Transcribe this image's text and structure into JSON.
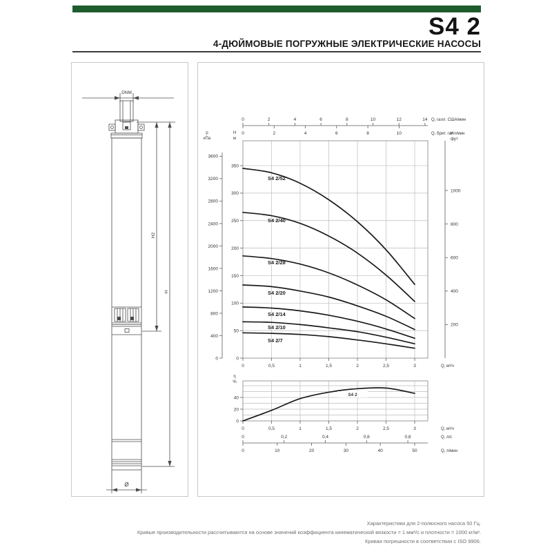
{
  "page": {
    "title": "S4 2",
    "subtitle": "4-ДЮЙМОВЫЕ ПОГРУЖНЫЕ ЭЛЕКТРИЧЕСКИЕ НАСОСЫ"
  },
  "drawing": {
    "labels": {
      "dnm": "DNM",
      "h2": "H2",
      "h": "H",
      "diameter": "Ø"
    }
  },
  "chart_data": [
    {
      "type": "line",
      "title": "",
      "xlabel": "Q, м³/ч",
      "ylabel": "H, м",
      "xlim": [
        0,
        3.23
      ],
      "ylim": [
        0,
        395
      ],
      "grid": true,
      "x": [
        0,
        0.5,
        1,
        1.5,
        2,
        2.5,
        3
      ],
      "series": [
        {
          "name": "S4 2/52",
          "values": [
            345,
            337,
            318,
            288,
            248,
            197,
            134
          ]
        },
        {
          "name": "S4 2/40",
          "values": [
            265,
            259,
            245,
            222,
            191,
            151,
            103
          ]
        },
        {
          "name": "S4 2/28",
          "values": [
            186,
            181,
            171,
            155,
            133,
            106,
            72
          ]
        },
        {
          "name": "S4 2/20",
          "values": [
            133,
            130,
            122,
            111,
            95,
            76,
            52
          ]
        },
        {
          "name": "S4 2/14",
          "values": [
            93,
            91,
            86,
            78,
            67,
            53,
            36
          ]
        },
        {
          "name": "S4 2/10",
          "values": [
            66,
            65,
            61,
            55,
            48,
            38,
            26
          ]
        },
        {
          "name": "S4 2/7",
          "values": [
            46,
            45,
            43,
            39,
            33,
            26,
            18
          ]
        }
      ],
      "axes": {
        "x_bottom_m3h": {
          "label": "Q, м³/ч",
          "values": [
            0,
            0.5,
            1,
            1.5,
            2,
            2.5,
            3
          ],
          "tick_labels": [
            "0",
            "0,5",
            "1",
            "1,5",
            "2",
            "2,5",
            "3"
          ]
        },
        "x_top_us_gpm": {
          "label": "Q, галл. США/мин",
          "values": [
            0,
            2,
            4,
            6,
            8,
            10,
            12,
            14
          ]
        },
        "x_top_imp_gpm": {
          "label": "Q, брит. галл/мин",
          "values": [
            0,
            2,
            4,
            6,
            8,
            10
          ]
        },
        "y_left_head_m": {
          "label": "H, м",
          "stack": [
            "H",
            "м"
          ],
          "values": [
            0,
            50,
            100,
            150,
            200,
            250,
            300,
            350
          ]
        },
        "y_left_kpa": {
          "label": "p, кПа",
          "stack": [
            "p",
            "кПа"
          ],
          "values": [
            0,
            400,
            800,
            1200,
            1600,
            2000,
            2400,
            2800,
            3200,
            3600
          ]
        },
        "y_right_ft": {
          "label": "H, фут",
          "stack": [
            "H",
            "фут"
          ],
          "values": [
            200,
            400,
            600,
            800,
            1000
          ]
        }
      }
    },
    {
      "type": "line",
      "title": "",
      "curve_label": "S4 2",
      "xlabel": "Q, м³/ч",
      "ylabel": "η, %",
      "xlim": [
        0,
        3.23
      ],
      "ylim": [
        0,
        68
      ],
      "grid": true,
      "x": [
        0,
        0.5,
        1,
        1.5,
        2,
        2.5,
        3
      ],
      "values": [
        0,
        18,
        38,
        49,
        55,
        56,
        47
      ],
      "axes": {
        "y_left_eff": {
          "label": "η, %",
          "stack": [
            "η",
            "%"
          ],
          "values": [
            0,
            20,
            40
          ]
        },
        "x_bottom_m3h": {
          "label": "Q, м³/ч",
          "values": [
            0,
            0.5,
            1,
            1.5,
            2,
            2.5,
            3
          ],
          "tick_labels": [
            "0",
            "0,5",
            "1",
            "1,5",
            "2",
            "2,5",
            "3"
          ]
        },
        "x_bottom_l_s": {
          "label": "Q, л/с",
          "values": [
            0,
            0.2,
            0.4,
            0.6,
            0.8
          ],
          "tick_labels": [
            "0",
            "0,2",
            "0,4",
            "0,6",
            "0,8"
          ]
        },
        "x_bottom_l_min": {
          "label": "Q, л/мин",
          "values": [
            0,
            10,
            20,
            30,
            40,
            50
          ]
        }
      }
    }
  ],
  "footer": {
    "lines": [
      "Характеристики для 2-полюсного насоса 50 Гц.",
      "Кривые производительности рассчитываются на основе значений коэффициента кинематической вязкости = 1 мм²/с и плотности = 1000 кг/м³.",
      "Кривая погрешности в соответствии с ISO 9906."
    ]
  },
  "colors": {
    "accent_green": "#1e5b2d",
    "curve": "#1a1a1a",
    "grid": "#bcbcbc",
    "axis": "#5a5a5a",
    "plot_border": "#909090",
    "text": "#333333",
    "footer_text": "#6e6e6e"
  }
}
